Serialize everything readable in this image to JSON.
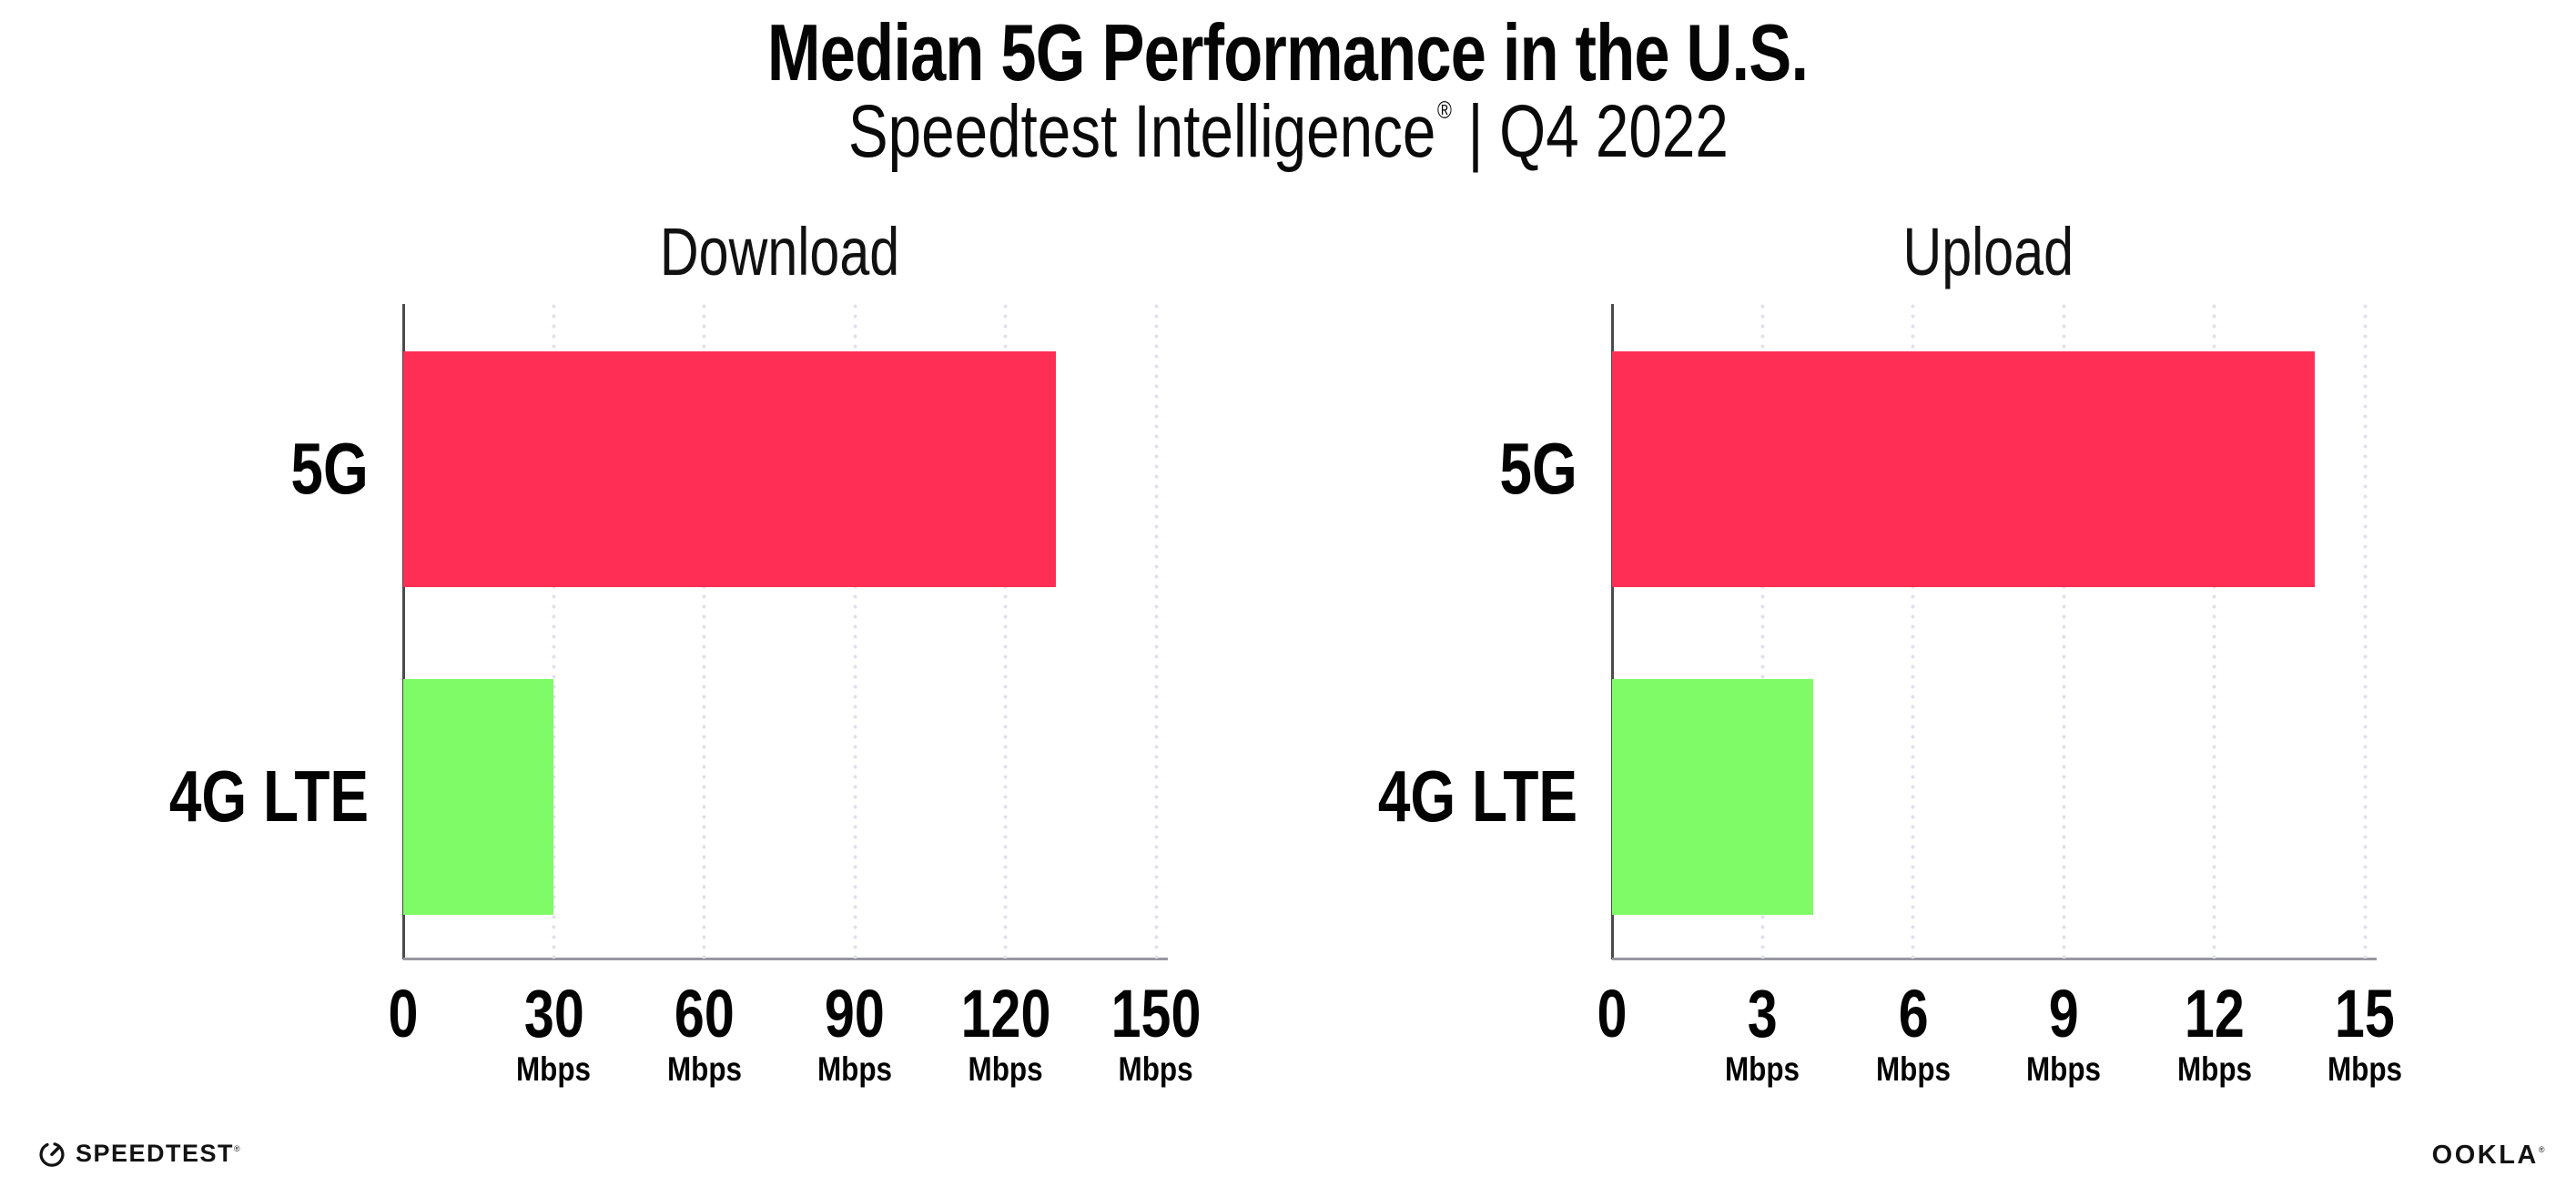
{
  "header": {
    "title": "Median 5G Performance in the U.S.",
    "subtitle": {
      "brand": "Speedtest Intelligence",
      "registered": "®",
      "divider": "|",
      "period": "Q4 2022"
    }
  },
  "chart_data": [
    {
      "type": "bar",
      "orientation": "horizontal",
      "title": "Download",
      "unit": "Mbps",
      "categories": [
        "5G",
        "4G LTE"
      ],
      "values": [
        130,
        30
      ],
      "xlim": [
        0,
        150
      ],
      "xticks": [
        0,
        30,
        60,
        90,
        120,
        150
      ],
      "bar_colors": [
        "#FF2E55",
        "#7EFB66"
      ],
      "grid": "dotted vertical gridlines at each tick",
      "legend": "none"
    },
    {
      "type": "bar",
      "orientation": "horizontal",
      "title": "Upload",
      "unit": "Mbps",
      "categories": [
        "5G",
        "4G LTE"
      ],
      "values": [
        14,
        4
      ],
      "xlim": [
        0,
        15
      ],
      "xticks": [
        0,
        3,
        6,
        9,
        12,
        15
      ],
      "bar_colors": [
        "#FF2E55",
        "#7EFB66"
      ],
      "grid": "dotted vertical gridlines at each tick",
      "legend": "none"
    }
  ],
  "footer": {
    "speedtest_label": "SPEEDTEST",
    "speedtest_mark": "®",
    "ookla_label": "OOKLA",
    "ookla_mark": "®"
  },
  "colors": {
    "bar_5g": "#FF2E55",
    "bar_4g": "#7EFB66",
    "gridline": "#E0E0EC",
    "x_axis": "#97979F",
    "y_axis": "#4B4B4B",
    "text": "#000000"
  }
}
